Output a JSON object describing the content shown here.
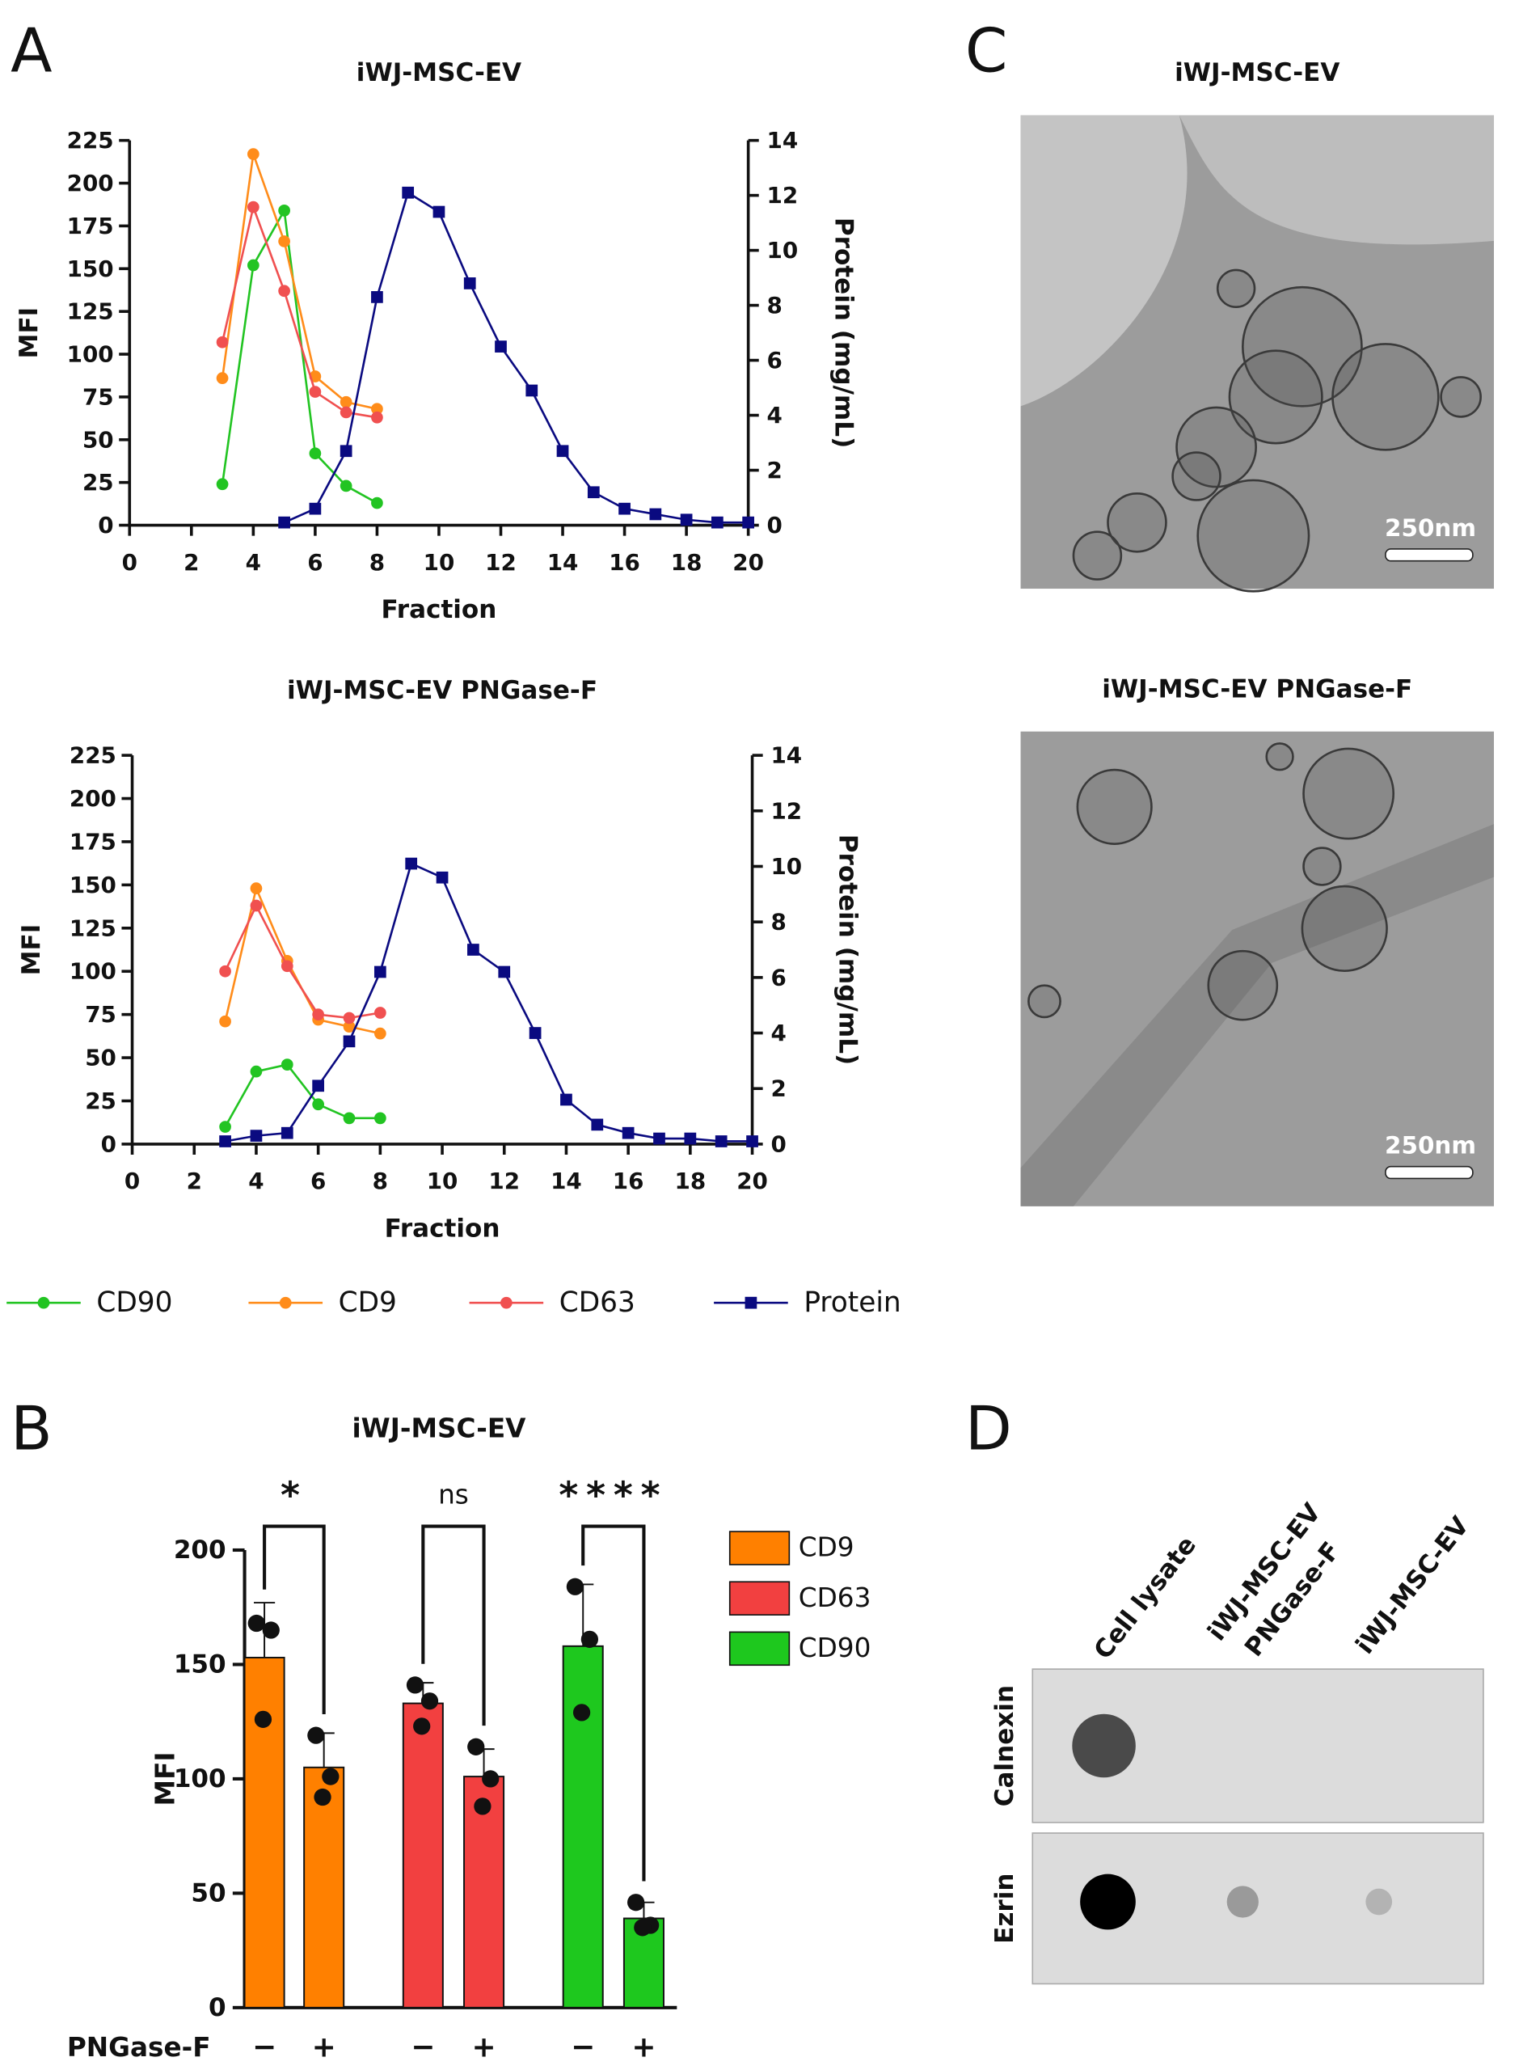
{
  "panel_labels": [
    "A",
    "B",
    "C",
    "D"
  ],
  "chart_data": [
    {
      "type": "line",
      "title": "iWJ-MSC-EV",
      "x_label": "Fraction",
      "y_label": "MFI",
      "y2_label": "Protein (mg/mL)",
      "xlim": [
        0,
        20
      ],
      "xticks": [
        0,
        2,
        4,
        6,
        8,
        10,
        12,
        14,
        16,
        18,
        20
      ],
      "ylim": [
        0,
        225
      ],
      "yticks": [
        0,
        25,
        50,
        75,
        100,
        125,
        150,
        175,
        200,
        225
      ],
      "y2lim": [
        0,
        14
      ],
      "y2ticks": [
        0,
        2,
        4,
        6,
        8,
        10,
        12,
        14
      ],
      "legend": "bottom",
      "series": [
        {
          "name": "CD90",
          "color": "#22c422",
          "marker": "circle",
          "x": [
            3,
            4,
            5,
            6,
            7,
            8
          ],
          "values": [
            24,
            152,
            184,
            42,
            23,
            13
          ]
        },
        {
          "name": "CD9",
          "color": "#ff8c1a",
          "marker": "circle",
          "x": [
            3,
            4,
            5,
            6,
            7,
            8
          ],
          "values": [
            86,
            217,
            166,
            87,
            72,
            68
          ]
        },
        {
          "name": "CD63",
          "color": "#f05050",
          "marker": "circle",
          "x": [
            3,
            4,
            5,
            6,
            7,
            8
          ],
          "values": [
            107,
            186,
            137,
            78,
            66,
            63
          ]
        },
        {
          "name": "Protein",
          "color": "#0a0a80",
          "marker": "square",
          "axis": "y2",
          "x": [
            5,
            6,
            7,
            8,
            9,
            10,
            11,
            12,
            13,
            14,
            15,
            16,
            17,
            18,
            19,
            20
          ],
          "values": [
            0.1,
            0.6,
            2.7,
            8.3,
            12.1,
            11.4,
            8.8,
            6.5,
            4.9,
            2.7,
            1.2,
            0.6,
            0.4,
            0.2,
            0.1,
            0.1
          ]
        }
      ]
    },
    {
      "type": "line",
      "title": "iWJ-MSC-EV PNGase-F",
      "x_label": "Fraction",
      "y_label": "MFI",
      "y2_label": "Protein (mg/mL)",
      "xlim": [
        0,
        20
      ],
      "xticks": [
        0,
        2,
        4,
        6,
        8,
        10,
        12,
        14,
        16,
        18,
        20
      ],
      "ylim": [
        0,
        225
      ],
      "yticks": [
        0,
        25,
        50,
        75,
        100,
        125,
        150,
        175,
        200,
        225
      ],
      "y2lim": [
        0,
        14
      ],
      "y2ticks": [
        0,
        2,
        4,
        6,
        8,
        10,
        12,
        14
      ],
      "series": [
        {
          "color": "#22c422",
          "marker": "circle",
          "x": [
            3,
            4,
            5,
            6,
            7,
            8
          ],
          "values": [
            10,
            42,
            46,
            23,
            15,
            15
          ]
        },
        {
          "color": "#ff8c1a",
          "marker": "circle",
          "x": [
            3,
            4,
            5,
            6,
            7,
            8
          ],
          "values": [
            71,
            148,
            106,
            72,
            68,
            64
          ]
        },
        {
          "color": "#f05050",
          "marker": "circle",
          "x": [
            3,
            4,
            5,
            6,
            7,
            8
          ],
          "values": [
            100,
            138,
            103,
            75,
            73,
            76
          ]
        },
        {
          "color": "#0a0a80",
          "marker": "square",
          "axis": "y2",
          "x": [
            3,
            4,
            5,
            6,
            7,
            8,
            9,
            10,
            11,
            12,
            13,
            14,
            15,
            16,
            17,
            18,
            19,
            20
          ],
          "values": [
            0.1,
            0.3,
            0.4,
            2.1,
            3.7,
            6.2,
            10.1,
            9.6,
            7.0,
            6.2,
            4.0,
            1.6,
            0.7,
            0.4,
            0.2,
            0.2,
            0.1,
            0.1
          ]
        }
      ]
    },
    {
      "type": "bar",
      "title": "iWJ-MSC-EV",
      "y_label": "MFI",
      "x_label": "PNGase-F",
      "categories": [
        "−",
        "+",
        "−",
        "+",
        "−",
        "+"
      ],
      "ylim": [
        0,
        200
      ],
      "yticks": [
        0,
        50,
        100,
        150,
        200
      ],
      "legend": "right",
      "annotations": [
        "*",
        "ns",
        "****"
      ],
      "series": [
        {
          "name": "CD9",
          "color": "#ff8000",
          "values": [
            153,
            105,
            null,
            null,
            null,
            null
          ],
          "errors": [
            24,
            15,
            null,
            null,
            null,
            null
          ],
          "points": [
            [
              168,
              165,
              126
            ],
            [
              119,
              101,
              92
            ],
            null,
            null,
            null,
            null
          ]
        },
        {
          "name": "CD63",
          "color": "#f24040",
          "values": [
            null,
            null,
            133,
            101,
            null,
            null
          ],
          "errors": [
            null,
            null,
            9,
            12,
            null,
            null
          ],
          "points": [
            null,
            null,
            [
              141,
              134,
              123
            ],
            [
              114,
              100,
              88
            ],
            null,
            null
          ]
        },
        {
          "name": "CD90",
          "color": "#1ec81e",
          "values": [
            null,
            null,
            null,
            null,
            158,
            39
          ],
          "errors": [
            null,
            null,
            null,
            null,
            27,
            7
          ],
          "points": [
            null,
            null,
            null,
            null,
            [
              184,
              161,
              129
            ],
            [
              46,
              36,
              35
            ]
          ]
        }
      ]
    }
  ],
  "micrographs": [
    {
      "title": "iWJ-MSC-EV",
      "scale_bar": "250nm"
    },
    {
      "title": "iWJ-MSC-EV PNGase-F",
      "scale_bar": "250nm"
    }
  ],
  "dot_blot": {
    "columns": [
      [
        "Cell lysate"
      ],
      [
        "iWJ-MSC-EV",
        "PNGase-F"
      ],
      [
        "iWJ-MSC-EV"
      ]
    ],
    "rows": [
      "Calnexin",
      "Ezrin"
    ]
  }
}
